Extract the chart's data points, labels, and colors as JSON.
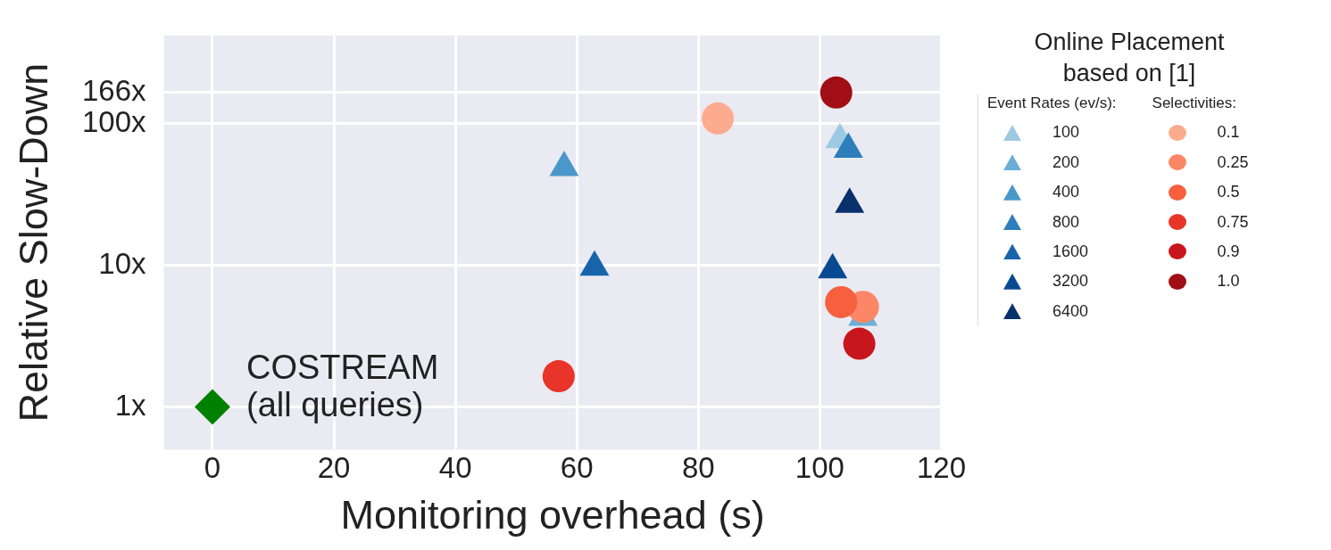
{
  "chart_data": {
    "type": "scatter",
    "xlabel": "Monitoring overhead (s)",
    "ylabel": "Relative Slow-Down",
    "legend_title": "Online Placement based on [1]",
    "log": "y",
    "grid": true,
    "legend": "right",
    "xlim": [
      -8,
      120
    ],
    "xticks": [
      0,
      20,
      40,
      60,
      80,
      100,
      120
    ],
    "ylim": [
      0.5,
      420
    ],
    "yticks": [
      {
        "value": 1,
        "label": "1x"
      },
      {
        "value": 10,
        "label": "10x"
      },
      {
        "value": 100,
        "label": "100x"
      },
      {
        "value": 166,
        "label": "166x"
      }
    ],
    "annotations": [
      {
        "text": "COSTREAM\n(all queries)",
        "x": 0,
        "y": 1
      },
      "Event Rates (ev/s):",
      "Selectivities:"
    ],
    "series": [
      {
        "color": "#008000",
        "marker": "diamond",
        "x": [
          0
        ],
        "values": [
          1
        ]
      },
      {
        "name": "100",
        "color": "#9ecae1",
        "marker": "triangle",
        "x": [
          103.3
        ],
        "values": [
          77
        ]
      },
      {
        "name": "200",
        "color": "#6baed6",
        "marker": "triangle",
        "x": [
          107.1
        ],
        "values": [
          4.3
        ]
      },
      {
        "name": "400",
        "color": "#4a98c9",
        "marker": "triangle",
        "x": [
          57.9
        ],
        "values": [
          49
        ]
      },
      {
        "name": "800",
        "color": "#2e7ebc",
        "marker": "triangle",
        "x": [
          104.7
        ],
        "values": [
          66
        ]
      },
      {
        "name": "1600",
        "color": "#1764ab",
        "marker": "triangle",
        "x": [
          62.9
        ],
        "values": [
          9.7
        ]
      },
      {
        "name": "3200",
        "color": "#084a91",
        "marker": "triangle",
        "x": [
          102.1
        ],
        "values": [
          9.3
        ]
      },
      {
        "name": "6400",
        "color": "#08306b",
        "marker": "triangle",
        "x": [
          104.9
        ],
        "values": [
          27
        ]
      },
      {
        "name": "0.1",
        "color": "#fcab8f",
        "marker": "circle",
        "x": [
          83.2
        ],
        "values": [
          109
        ]
      },
      {
        "name": "0.25",
        "color": "#fc8767",
        "marker": "circle",
        "x": [
          107.1
        ],
        "values": [
          5.1
        ]
      },
      {
        "name": "0.5",
        "color": "#f6603f",
        "marker": "circle",
        "x": [
          103.5
        ],
        "values": [
          5.5
        ]
      },
      {
        "name": "0.75",
        "color": "#e83429",
        "marker": "circle",
        "x": [
          57
        ],
        "values": [
          1.65
        ]
      },
      {
        "name": "0.9",
        "color": "#c8171c",
        "marker": "circle",
        "x": [
          106.5
        ],
        "values": [
          2.8
        ]
      },
      {
        "name": "1.0",
        "color": "#a10e15",
        "marker": "circle",
        "x": [
          102.7
        ],
        "values": [
          166
        ]
      }
    ]
  }
}
